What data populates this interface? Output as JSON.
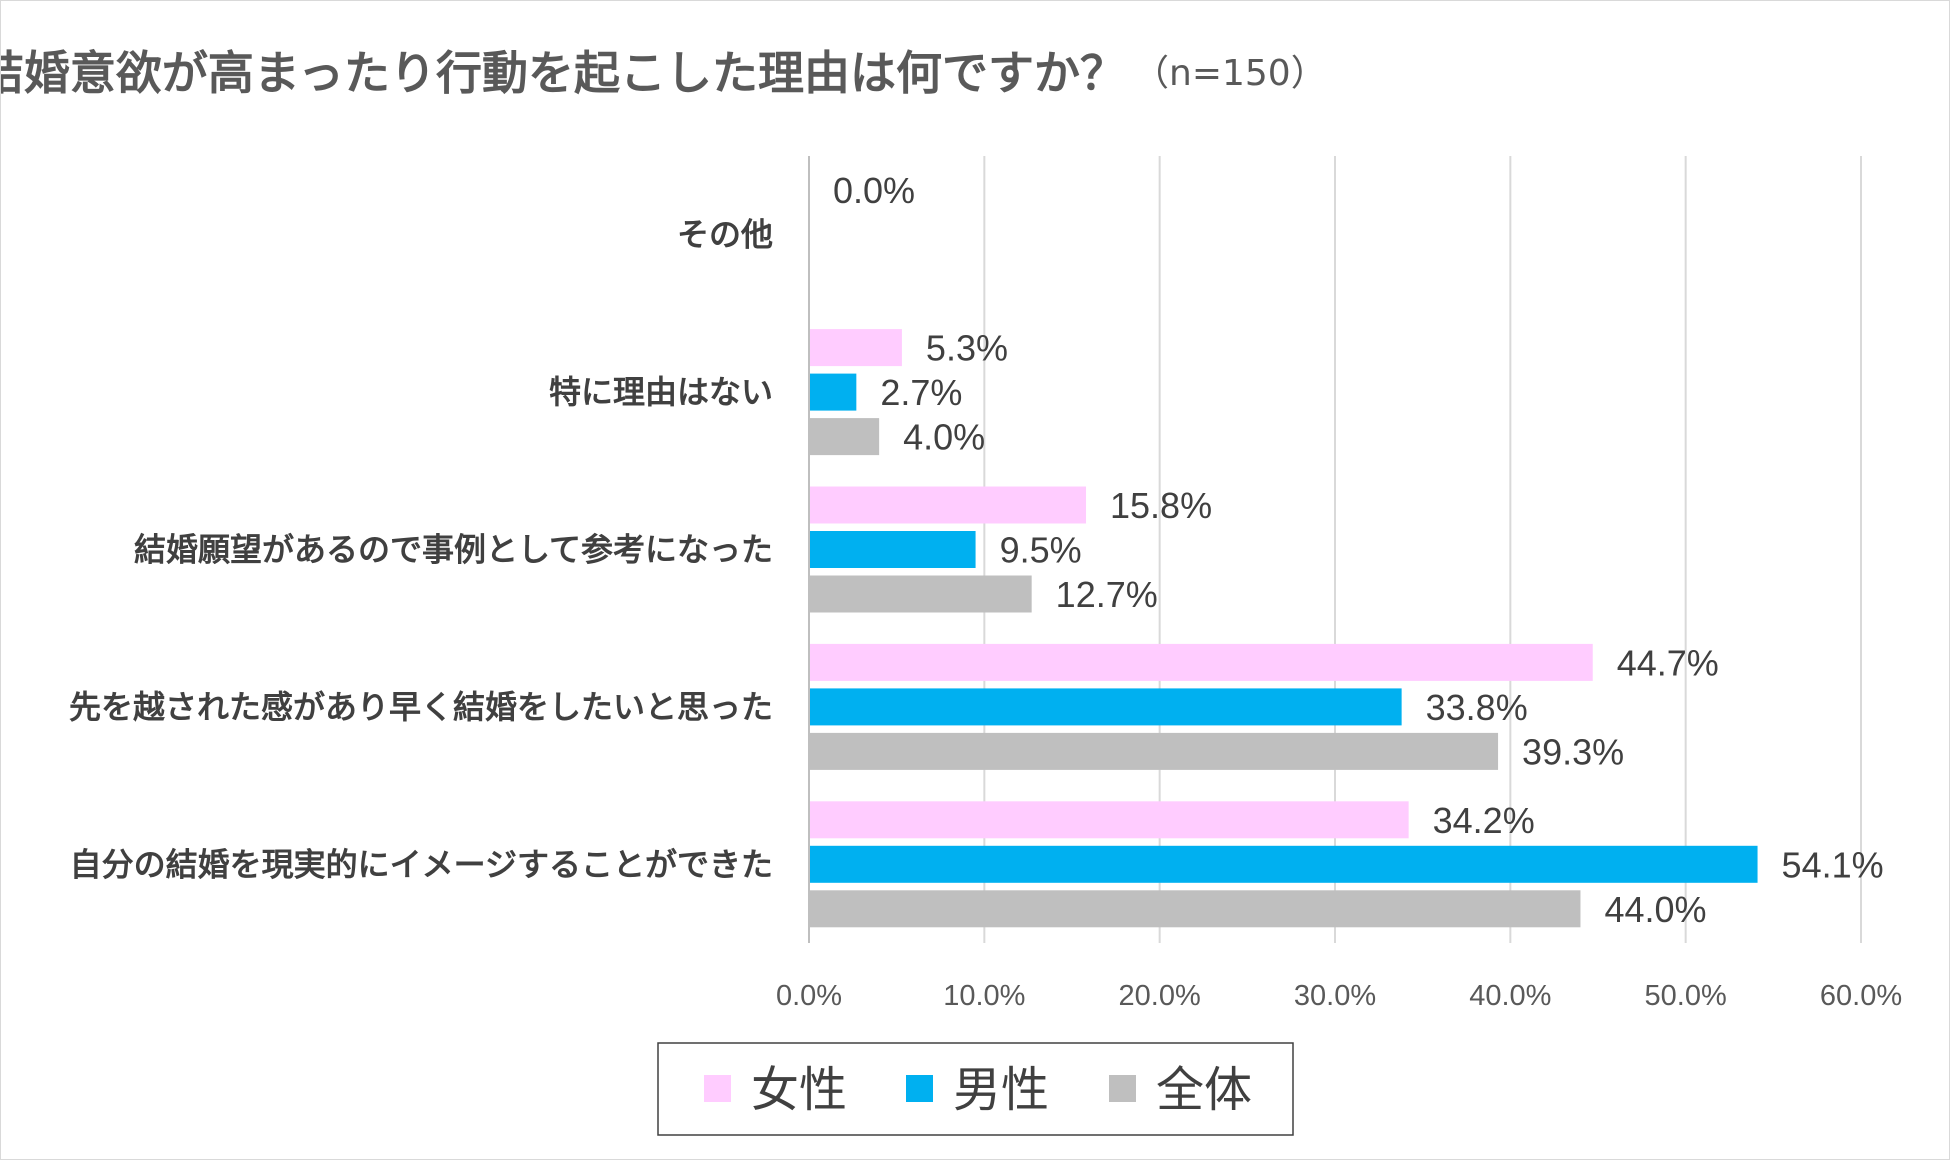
{
  "chart_data": {
    "type": "bar",
    "orientation": "horizontal",
    "title": "結婚意欲が高まったり行動を起こした理由は何ですか？",
    "subtitle": "（n=150）",
    "categories": [
      "その他",
      "特に理由はない",
      "結婚願望があるので事例として参考になった",
      "先を越された感があり早く結婚をしたいと思った",
      "自分の結婚を現実的にイメージすることができた"
    ],
    "series": [
      {
        "name": "女性",
        "color": "#ffccff",
        "values": [
          null,
          5.3,
          15.8,
          44.7,
          34.2
        ],
        "labels": [
          "0.0%",
          "5.3%",
          "15.8%",
          "44.7%",
          "34.2%"
        ]
      },
      {
        "name": "男性",
        "color": "#00b0f0",
        "values": [
          null,
          2.7,
          9.5,
          33.8,
          54.1
        ],
        "labels": [
          "",
          "2.7%",
          "9.5%",
          "33.8%",
          "54.1%"
        ]
      },
      {
        "name": "全体",
        "color": "#bfbfbf",
        "values": [
          null,
          4.0,
          12.7,
          39.3,
          44.0
        ],
        "labels": [
          "",
          "4.0%",
          "12.7%",
          "39.3%",
          "44.0%"
        ]
      }
    ],
    "xlim": [
      0,
      60
    ],
    "xticks": [
      0,
      10,
      20,
      30,
      40,
      50,
      60
    ],
    "xtick_labels": [
      "0.0%",
      "10.0%",
      "20.0%",
      "30.0%",
      "40.0%",
      "50.0%",
      "60.0%"
    ],
    "grid": "vertical",
    "legend_position": "bottom",
    "colors": {
      "gridline": "#d9d9d9",
      "axis": "#bfbfbf"
    }
  }
}
